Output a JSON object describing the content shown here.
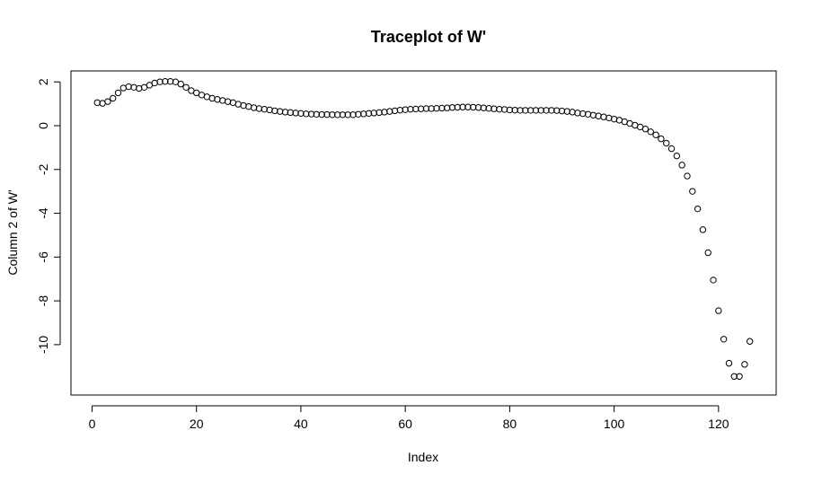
{
  "chart_data": {
    "type": "scatter",
    "title": "Traceplot of W'",
    "xlabel": "Index",
    "ylabel": "Column 2 of W'",
    "xlim": [
      -4.04,
      131.04
    ],
    "ylim": [
      -12.3,
      2.5
    ],
    "x_ticks": [
      0,
      20,
      40,
      60,
      80,
      100,
      120
    ],
    "y_ticks": [
      2,
      0,
      -2,
      -4,
      -6,
      -8,
      -10
    ],
    "grid": false,
    "legend": "none",
    "marker": "open-circle",
    "x": [
      1,
      2,
      3,
      4,
      5,
      6,
      7,
      8,
      9,
      10,
      11,
      12,
      13,
      14,
      15,
      16,
      17,
      18,
      19,
      20,
      21,
      22,
      23,
      24,
      25,
      26,
      27,
      28,
      29,
      30,
      31,
      32,
      33,
      34,
      35,
      36,
      37,
      38,
      39,
      40,
      41,
      42,
      43,
      44,
      45,
      46,
      47,
      48,
      49,
      50,
      51,
      52,
      53,
      54,
      55,
      56,
      57,
      58,
      59,
      60,
      61,
      62,
      63,
      64,
      65,
      66,
      67,
      68,
      69,
      70,
      71,
      72,
      73,
      74,
      75,
      76,
      77,
      78,
      79,
      80,
      81,
      82,
      83,
      84,
      85,
      86,
      87,
      88,
      89,
      90,
      91,
      92,
      93,
      94,
      95,
      96,
      97,
      98,
      99,
      100,
      101,
      102,
      103,
      104,
      105,
      106,
      107,
      108,
      109,
      110,
      111,
      112,
      113,
      114,
      115,
      116,
      117,
      118,
      119,
      120,
      121,
      122,
      123,
      124,
      125,
      126
    ],
    "y": [
      1.05,
      1.02,
      1.1,
      1.25,
      1.5,
      1.72,
      1.78,
      1.75,
      1.7,
      1.75,
      1.85,
      1.95,
      2.0,
      2.02,
      2.02,
      2.0,
      1.9,
      1.75,
      1.6,
      1.5,
      1.4,
      1.32,
      1.25,
      1.2,
      1.15,
      1.1,
      1.05,
      0.98,
      0.92,
      0.87,
      0.82,
      0.78,
      0.75,
      0.72,
      0.68,
      0.65,
      0.62,
      0.6,
      0.58,
      0.56,
      0.54,
      0.53,
      0.52,
      0.51,
      0.51,
      0.5,
      0.5,
      0.5,
      0.5,
      0.5,
      0.52,
      0.54,
      0.56,
      0.58,
      0.6,
      0.62,
      0.65,
      0.68,
      0.71,
      0.73,
      0.75,
      0.76,
      0.77,
      0.78,
      0.78,
      0.79,
      0.8,
      0.81,
      0.83,
      0.84,
      0.85,
      0.85,
      0.84,
      0.83,
      0.81,
      0.79,
      0.77,
      0.75,
      0.74,
      0.72,
      0.71,
      0.7,
      0.7,
      0.7,
      0.7,
      0.7,
      0.7,
      0.7,
      0.69,
      0.67,
      0.65,
      0.62,
      0.58,
      0.55,
      0.52,
      0.48,
      0.44,
      0.4,
      0.35,
      0.3,
      0.25,
      0.18,
      0.1,
      0.02,
      -0.06,
      -0.15,
      -0.28,
      -0.42,
      -0.6,
      -0.8,
      -1.05,
      -1.38,
      -1.8,
      -2.3,
      -3.0,
      -3.8,
      -4.75,
      -5.8,
      -7.05,
      -8.45,
      -9.75,
      -10.85,
      -11.45,
      -11.45,
      -10.9,
      -9.85
    ]
  }
}
